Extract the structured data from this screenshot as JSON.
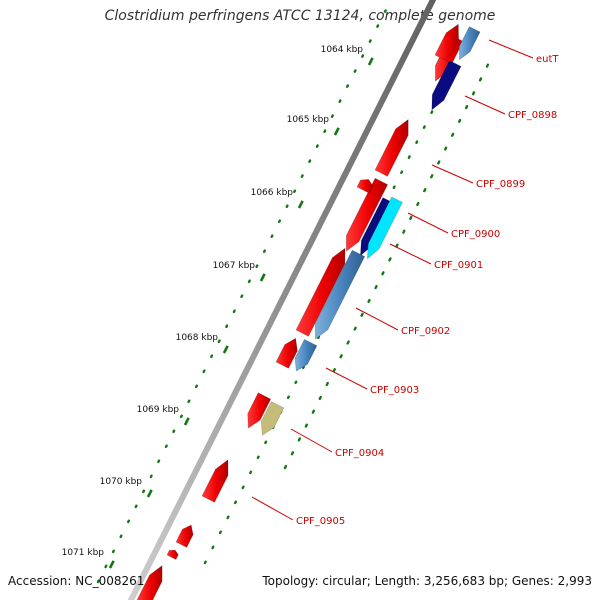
{
  "title": "Clostridium perfringens ATCC 13124, complete genome",
  "accession": "Accession: NC_008261",
  "topology": "Topology: circular; Length: 3,256,683 bp; Genes: 2,993",
  "kbp_ticks": [
    "1064 kbp",
    "1065 kbp",
    "1066 kbp",
    "1067 kbp",
    "1068 kbp",
    "1069 kbp",
    "1070 kbp",
    "1071 kbp"
  ],
  "gene_labels": [
    "eutT",
    "CPF_0898",
    "CPF_0899",
    "CPF_0900",
    "CPF_0901",
    "CPF_0902",
    "CPF_0903",
    "CPF_0904",
    "CPF_0905"
  ],
  "colors": {
    "cds": "#ff0000",
    "cog_steelblue": "#4a86c0",
    "cog_navy": "#0b0b80",
    "cog_cyan": "#00e5ff",
    "cog_olive": "#c4bd7a",
    "tick_green": "#117711",
    "backbone": "#777777",
    "label_red": "#cc0000"
  }
}
